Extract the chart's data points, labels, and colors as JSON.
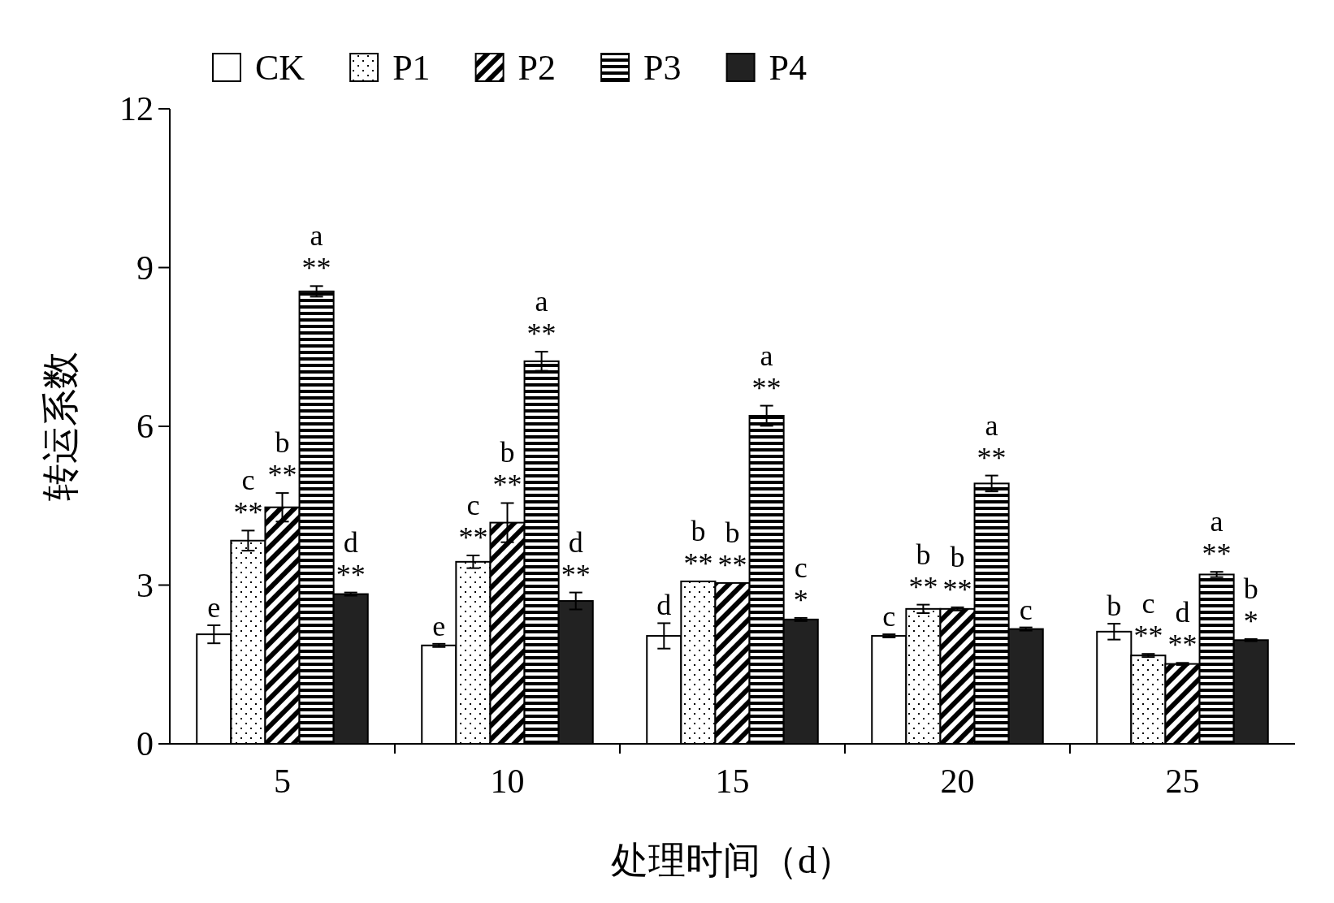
{
  "chart_data": {
    "type": "bar",
    "xlabel": "处理时间（d）",
    "ylabel": "转运系数",
    "categories": [
      "5",
      "10",
      "15",
      "20",
      "25"
    ],
    "ylim": [
      0,
      12
    ],
    "yticks": [
      0,
      3,
      6,
      9,
      12
    ],
    "grid": false,
    "legend": "top left",
    "series": [
      {
        "name": "CK",
        "color": "#ffffff",
        "values": [
          2.07,
          1.86,
          2.04,
          2.04,
          2.12
        ],
        "errors": [
          0.17,
          0.03,
          0.24,
          0.03,
          0.15
        ],
        "value_labels": [
          "e",
          "e",
          "d",
          "c",
          "b"
        ]
      },
      {
        "name": "P1",
        "color": "#000000",
        "values": [
          3.84,
          3.44,
          3.07,
          2.55,
          1.67
        ],
        "errors": [
          0.19,
          0.12,
          null,
          0.08,
          0.03
        ],
        "value_labels": [
          "c\n**",
          "c\n**",
          "b\n**",
          "b\n**",
          "c\n**"
        ]
      },
      {
        "name": "P2",
        "color": "#000000",
        "values": [
          4.47,
          4.18,
          3.04,
          2.55,
          1.51
        ],
        "errors": [
          0.27,
          0.37,
          null,
          0.03,
          0.02
        ],
        "value_labels": [
          "b\n**",
          "b\n**",
          "b\n**",
          "b\n**",
          "d\n**"
        ]
      },
      {
        "name": "P3",
        "color": "#000000",
        "values": [
          8.55,
          7.23,
          6.2,
          4.92,
          3.2
        ],
        "errors": [
          0.1,
          0.18,
          0.19,
          0.15,
          0.05
        ],
        "value_labels": [
          "a\n**",
          "a\n**",
          "a\n**",
          "a\n**",
          "a\n**"
        ]
      },
      {
        "name": "P4",
        "color": "#222222",
        "values": [
          2.83,
          2.7,
          2.35,
          2.17,
          1.96
        ],
        "errors": [
          0.03,
          0.16,
          0.03,
          0.03,
          0.02
        ],
        "value_labels": [
          "d\n**",
          "d\n**",
          "c\n*",
          "c",
          "b\n*"
        ]
      }
    ]
  }
}
